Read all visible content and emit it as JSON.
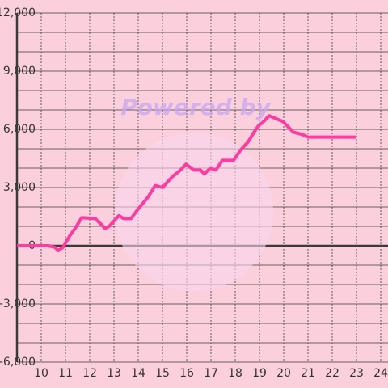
{
  "chart_data": {
    "type": "line",
    "watermark": "Powered by",
    "x": [
      9,
      10.3,
      10.57,
      10.7,
      10.9,
      11.17,
      11.4,
      11.67,
      12.23,
      12.63,
      12.8,
      13.2,
      13.4,
      13.7,
      14,
      14.4,
      14.7,
      15,
      15.4,
      15.7,
      15.97,
      16.3,
      16.57,
      16.73,
      16.97,
      17.2,
      17.47,
      17.93,
      18.23,
      18.53,
      18.8,
      18.97,
      19.13,
      19.4,
      19.97,
      20.4,
      20.73,
      21,
      22.97
    ],
    "series": [
      {
        "color": "#ff3aa0",
        "values": [
          0,
          0,
          -80,
          -250,
          -80,
          500,
          900,
          1450,
          1400,
          900,
          1000,
          1550,
          1400,
          1400,
          1900,
          2500,
          3100,
          3000,
          3550,
          3850,
          4200,
          3900,
          3900,
          3700,
          4000,
          3900,
          4400,
          4400,
          4950,
          5350,
          5900,
          6200,
          6350,
          6700,
          6400,
          5850,
          5750,
          5600,
          5600
        ]
      }
    ],
    "xlim": [
      9,
      24.3
    ],
    "xticks": [
      10,
      11,
      12,
      13,
      14,
      15,
      16,
      17,
      18,
      19,
      20,
      21,
      22,
      23,
      24
    ],
    "ylim": [
      -6000,
      12000
    ],
    "yticks": [
      {
        "value": -6000,
        "label": "-6,000"
      },
      {
        "value": -3000,
        "label": "-3,000"
      },
      0,
      {
        "value": 3000,
        "label": "3,000"
      },
      {
        "value": 6000,
        "label": "6,000"
      },
      {
        "value": 9000,
        "label": "9,000"
      },
      {
        "value": 12000,
        "label": "12,000"
      }
    ],
    "minor_yticks": [
      -5000,
      -4000,
      -2000,
      -1000,
      1000,
      2000,
      4000,
      5000,
      7000,
      8000,
      10000,
      11000
    ],
    "grid": true
  }
}
